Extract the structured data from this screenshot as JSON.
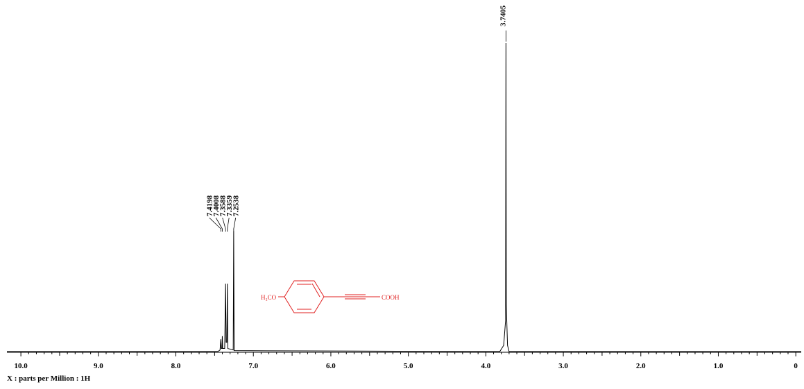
{
  "chart_data": {
    "type": "line",
    "axis_label": "X : parts per Million : 1H",
    "xlim": [
      10.18,
      -0.07
    ],
    "ylim": [
      0,
      100
    ],
    "xticks": [
      {
        "value": 10,
        "label": "10.0"
      },
      {
        "value": 9,
        "label": "9.0"
      },
      {
        "value": 8,
        "label": "8.0"
      },
      {
        "value": 7,
        "label": "7.0"
      },
      {
        "value": 6,
        "label": "6.0"
      },
      {
        "value": 5,
        "label": "5.0"
      },
      {
        "value": 4,
        "label": "4.0"
      },
      {
        "value": 3,
        "label": "3.0"
      },
      {
        "value": 2,
        "label": "2.0"
      },
      {
        "value": 1,
        "label": "1.0"
      },
      0
    ],
    "color": "#000000",
    "x": [
      10.18,
      7.46,
      7.43,
      7.4198,
      7.415,
      7.405,
      7.4008,
      7.396,
      7.37,
      7.3588,
      7.352,
      7.342,
      7.3359,
      7.33,
      7.26,
      7.2538,
      7.248,
      3.82,
      3.77,
      3.745,
      3.7405,
      3.736,
      3.72,
      3.7,
      -0.07
    ],
    "values": [
      0,
      0,
      0.5,
      4,
      1,
      1,
      5,
      1,
      1,
      22,
      3,
      3,
      22,
      1,
      0.5,
      39,
      0.3,
      0,
      2,
      10,
      100,
      15,
      2,
      0,
      0
    ],
    "peak_groups": [
      [
        7.4198,
        7.4008,
        7.3588,
        7.3359,
        7.2538
      ],
      [
        3.7405
      ]
    ],
    "structure": {
      "left": "H₃CO",
      "right": "COOH"
    }
  }
}
